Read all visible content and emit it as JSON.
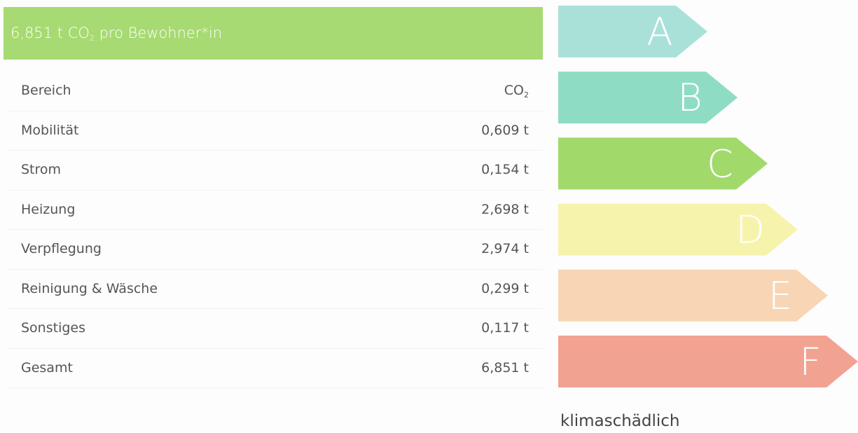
{
  "header": {
    "prefix": "6,851 t CO",
    "sub": "2",
    "suffix": " pro Bewohner*in"
  },
  "table": {
    "head": {
      "name": "Bereich",
      "value_prefix": "CO",
      "value_sub": "2"
    },
    "rows": [
      [
        "Mobilität",
        "0,609 t"
      ],
      [
        "Strom",
        "0,154 t"
      ],
      [
        "Heizung",
        "2,698 t"
      ],
      [
        "Verpflegung",
        "2,974 t"
      ],
      [
        "Reinigung & Wäsche",
        "0,299 t"
      ],
      [
        "Sonstiges",
        "0,117 t"
      ],
      [
        "Gesamt",
        "6,851 t"
      ]
    ]
  },
  "rating": [
    {
      "label": "A",
      "color": "#a9e1d9"
    },
    {
      "label": "B",
      "color": "#8fdcc5"
    },
    {
      "label": "C",
      "color": "#a2d96b"
    },
    {
      "label": "D",
      "color": "#f6f4ac"
    },
    {
      "label": "E",
      "color": "#f8d5b4"
    },
    {
      "label": "F",
      "color": "#f2a291"
    }
  ],
  "footer": "klimaschädlich"
}
